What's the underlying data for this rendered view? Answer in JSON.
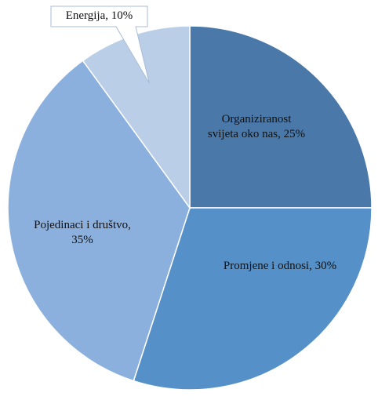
{
  "chart_data": {
    "type": "pie",
    "values": [
      25,
      30,
      35,
      10
    ],
    "value_labels": [
      "Organiziranost svijeta oko nas, 25%",
      "Promjene i odnosi, 30%",
      "Pojedinaci i društvo, 35%",
      "Energija, 10%"
    ],
    "colors": [
      "#4a78a8",
      "#5590c8",
      "#8cb0dd",
      "#bacee7"
    ],
    "start_angle": -90,
    "clockwise": true
  }
}
